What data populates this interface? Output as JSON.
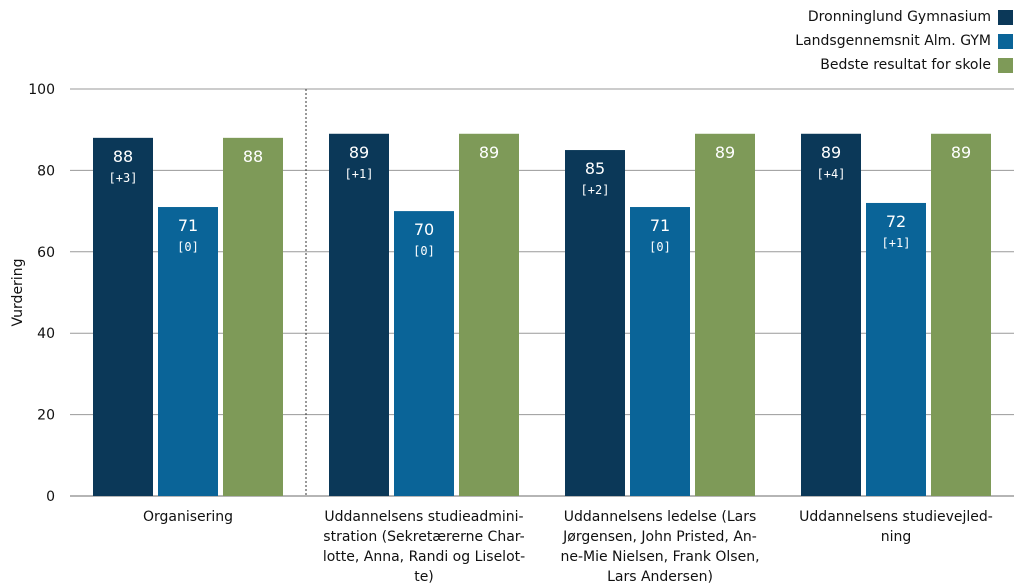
{
  "chart_data": {
    "type": "bar",
    "title": "",
    "xlabel": "",
    "ylabel": "Vurdering",
    "ylim": [
      0,
      100
    ],
    "yticks": [
      0,
      20,
      40,
      60,
      80,
      100
    ],
    "grid": true,
    "legend_position": "top-right",
    "categories": [
      [
        "Organisering"
      ],
      [
        "Uddannelsens studieadmini-",
        "stration (Sekretærerne Char-",
        "lotte, Anna, Randi og Liselot-",
        "te)"
      ],
      [
        "Uddannelsens ledelse (Lars",
        "Jørgensen, John Pristed, An-",
        "ne-Mie Nielsen, Frank Olsen,",
        "Lars Andersen)"
      ],
      [
        "Uddannelsens studievejled-",
        "ning"
      ]
    ],
    "series": [
      {
        "name": "Dronninglund Gymnasium",
        "color": "#0b3858",
        "values": [
          88,
          89,
          85,
          89
        ],
        "sublabels": [
          "[+3]",
          "[+1]",
          "[+2]",
          "[+4]"
        ]
      },
      {
        "name": "Landsgennemsnit Alm. GYM",
        "color": "#0a6498",
        "values": [
          71,
          70,
          71,
          72
        ],
        "sublabels": [
          "[0]",
          "[0]",
          "[0]",
          "[+1]"
        ]
      },
      {
        "name": "Bedste resultat for skole",
        "color": "#7e9a58",
        "values": [
          88,
          89,
          89,
          89
        ],
        "sublabels": [
          "",
          "",
          "",
          ""
        ]
      }
    ]
  }
}
